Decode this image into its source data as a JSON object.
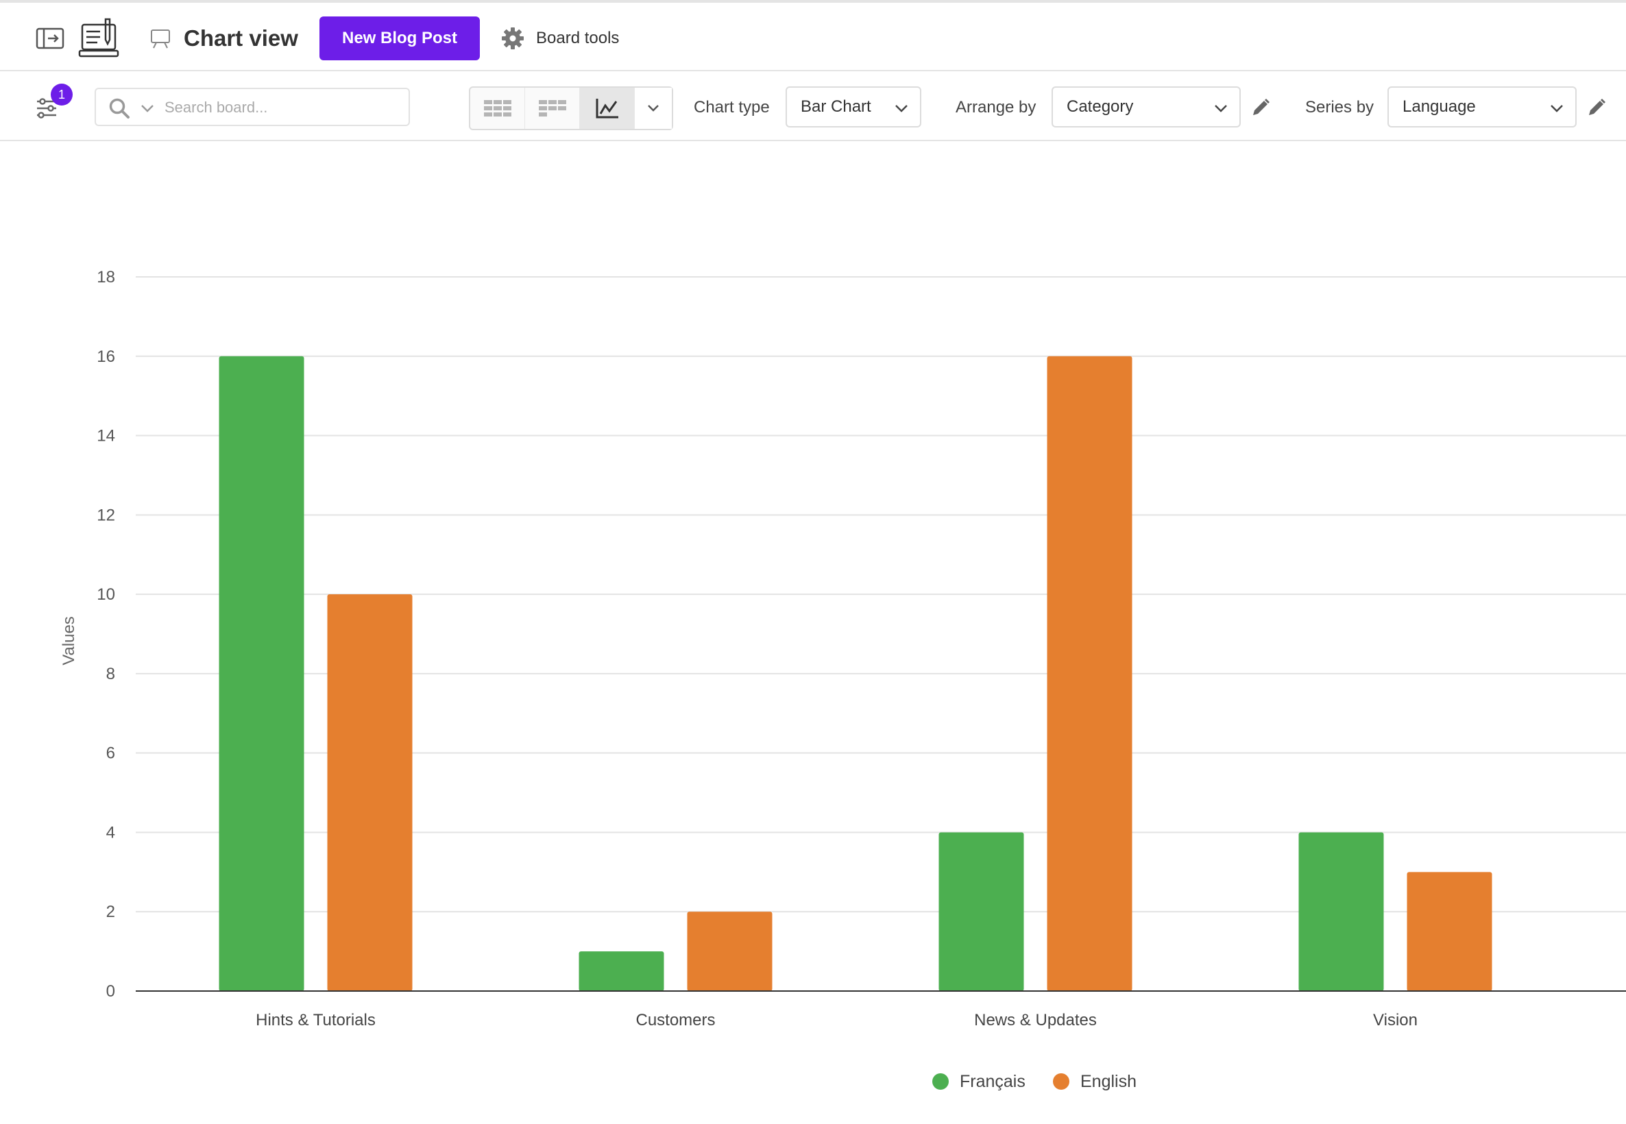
{
  "header": {
    "title": "Chart view",
    "new_button": "New Blog Post",
    "board_tools": "Board tools"
  },
  "toolbar": {
    "filter_count": "1",
    "search_placeholder": "Search board...",
    "chart_type_label": "Chart type",
    "chart_type_value": "Bar Chart",
    "arrange_by_label": "Arrange by",
    "arrange_by_value": "Category",
    "series_by_label": "Series by",
    "series_by_value": "Language"
  },
  "colors": {
    "accent": "#6d1ee8",
    "francais": "#4caf50",
    "english": "#e57f2f"
  },
  "icons": [
    "sidebar-toggle-icon",
    "app-logo-icon",
    "board-icon",
    "gear-icon",
    "filter-icon",
    "search-icon",
    "chevron-down-icon",
    "table-view-icon",
    "kanban-view-icon",
    "chart-view-icon",
    "pencil-icon"
  ],
  "chart_data": {
    "type": "bar",
    "categories": [
      "Hints & Tutorials",
      "Customers",
      "News & Updates",
      "Vision"
    ],
    "series": [
      {
        "name": "Français",
        "values": [
          16,
          1,
          4,
          4
        ],
        "color": "#4caf50"
      },
      {
        "name": "English",
        "values": [
          10,
          2,
          16,
          3
        ],
        "color": "#e57f2f"
      }
    ],
    "ylabel": "Values",
    "xlabel": "",
    "ylim": [
      0,
      18
    ],
    "yticks": [
      0,
      2,
      4,
      6,
      8,
      10,
      12,
      14,
      16,
      18
    ],
    "grid": true,
    "legend": "bottom-center"
  }
}
